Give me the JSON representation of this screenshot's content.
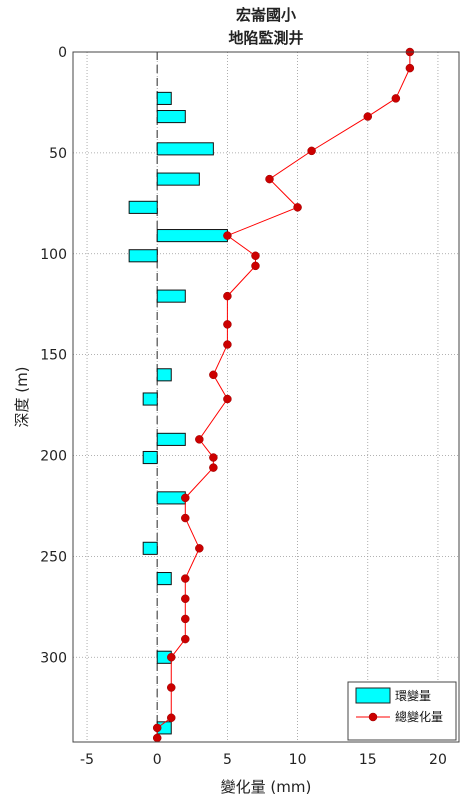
{
  "chart_data": {
    "type": "bar+line",
    "title_lines": [
      "宏崙國小",
      "地陷監測井"
    ],
    "xlabel": "變化量 (mm)",
    "ylabel": "深度 (m)",
    "xlim": [
      -6,
      21.5
    ],
    "ylim": [
      0,
      342
    ],
    "y_reversed": true,
    "xticks": [
      -5,
      0,
      5,
      10,
      15,
      20
    ],
    "yticks": [
      0,
      50,
      100,
      150,
      200,
      250,
      300
    ],
    "grid": true,
    "zero_line_dashed": true,
    "legend_position": "bottom-right",
    "colors": {
      "bar": "#00ffff",
      "line": "#ff0000",
      "marker": "#cc0000",
      "grid": "#999999"
    },
    "series": [
      {
        "name": "環變量",
        "type": "barh",
        "bar_height": 6,
        "y": [
          23,
          32,
          48,
          63,
          77,
          91,
          101,
          121,
          160,
          172,
          192,
          201,
          221,
          246,
          261,
          300,
          335
        ],
        "values": [
          1,
          2,
          4,
          3,
          -2,
          5,
          -2,
          2,
          1,
          -1,
          2,
          -1,
          2,
          -1,
          1,
          1,
          1
        ]
      },
      {
        "name": "總變化量",
        "type": "line",
        "y": [
          0,
          8,
          23,
          32,
          49,
          63,
          77,
          91,
          101,
          106,
          121,
          135,
          145,
          160,
          172,
          192,
          201,
          206,
          221,
          231,
          246,
          261,
          271,
          281,
          291,
          300,
          315,
          330,
          335,
          340
        ],
        "values": [
          18,
          18,
          17,
          15,
          11,
          8,
          10,
          5,
          7,
          7,
          5,
          5,
          5,
          4,
          5,
          3,
          4,
          4,
          2,
          2,
          3,
          2,
          2,
          2,
          2,
          1,
          1,
          1,
          0,
          0
        ]
      }
    ]
  }
}
